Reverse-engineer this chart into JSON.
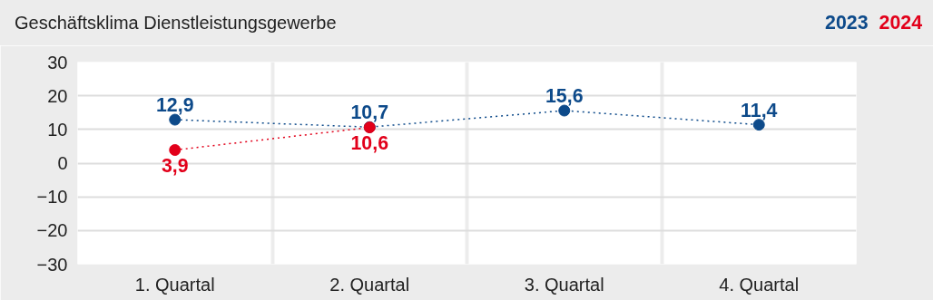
{
  "chart_data": {
    "type": "line",
    "title": "Geschäftsklima Dienstleistungsgewerbe",
    "categories": [
      "1. Quartal",
      "2. Quartal",
      "3. Quartal",
      "4. Quartal"
    ],
    "series": [
      {
        "name": "2023",
        "color": "#0d4a8a",
        "values": [
          12.9,
          10.7,
          15.6,
          11.4
        ],
        "value_labels": [
          "12,9",
          "10,7",
          "15,6",
          "11,4"
        ]
      },
      {
        "name": "2024",
        "color": "#e2001a",
        "values": [
          3.9,
          10.6,
          null,
          null
        ],
        "value_labels": [
          "3,9",
          "10,6",
          null,
          null
        ]
      }
    ],
    "ylim": [
      -30,
      30
    ],
    "yticks": [
      -30,
      -20,
      -10,
      0,
      10,
      20,
      30
    ],
    "grid": "y",
    "marker": "circle",
    "line_style": "dotted"
  }
}
